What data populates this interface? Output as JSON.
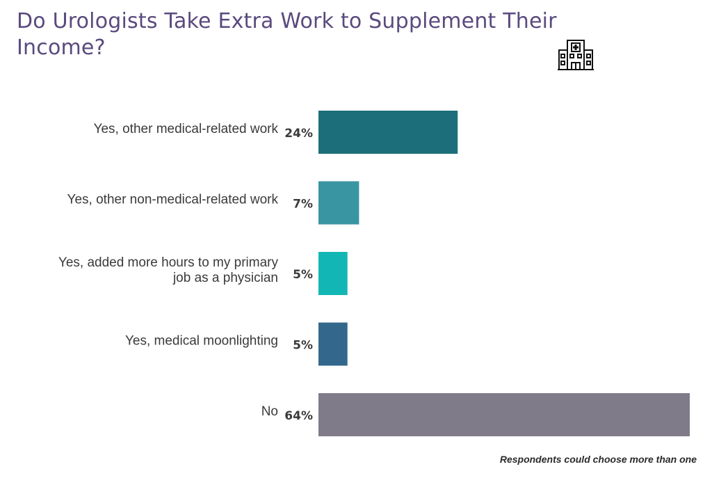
{
  "title": "Do Urologists Take Extra Work to Supplement Their Income?",
  "footnote": "Respondents could choose more than one",
  "icon": "hospital-icon",
  "chart_data": {
    "type": "bar",
    "orientation": "horizontal",
    "title": "Do Urologists Take Extra Work to Supplement Their Income?",
    "xlabel": "",
    "ylabel": "",
    "xlim": [
      0,
      64
    ],
    "grid": false,
    "legend": "none",
    "categories": [
      [
        "Yes, other medical-related work"
      ],
      [
        "Yes, other non-medical-related work"
      ],
      [
        "Yes, added more hours to my primary",
        "job as a physician"
      ],
      [
        "Yes, medical moonlighting"
      ],
      [
        "No"
      ]
    ],
    "values": [
      24,
      7,
      5,
      5,
      64
    ],
    "value_labels": [
      "24%",
      "7%",
      "5%",
      "5%",
      "64%"
    ],
    "colors": [
      "#1c6f7a",
      "#3a95a2",
      "#12b7b5",
      "#33688c",
      "#7f7b88"
    ]
  }
}
